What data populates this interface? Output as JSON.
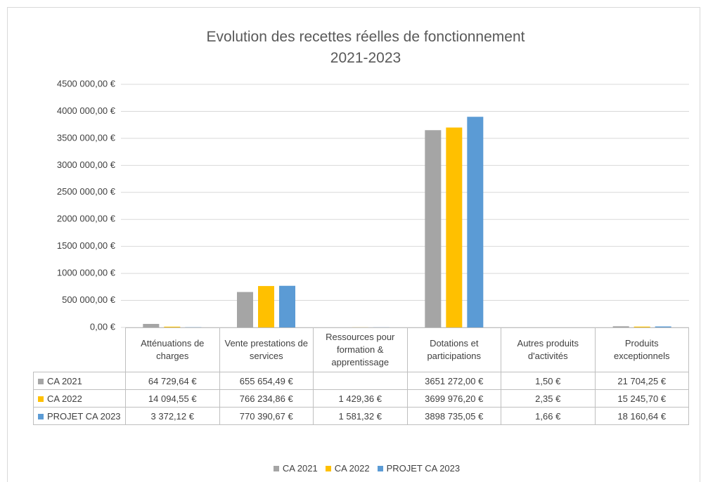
{
  "chart_data": {
    "type": "bar",
    "title": "Evolution des recettes réelles de fonctionnement\n2021-2023",
    "categories": [
      "Atténuations de charges",
      "Vente prestations de services",
      "Ressources pour formation & apprentissage",
      "Dotations et participations",
      "Autres produits d'activités",
      "Produits exceptionnels"
    ],
    "series": [
      {
        "name": "CA 2021",
        "color": "#a5a5a5",
        "values": [
          64729.64,
          655654.49,
          null,
          3651272.0,
          1.5,
          21704.25
        ],
        "value_labels": [
          "64 729,64 €",
          "655 654,49 €",
          null,
          "3651 272,00 €",
          "1,50 €",
          "21 704,25 €"
        ]
      },
      {
        "name": "CA 2022",
        "color": "#ffc000",
        "values": [
          14094.55,
          766234.86,
          1429.36,
          3699976.2,
          2.35,
          15245.7
        ],
        "value_labels": [
          "14 094,55 €",
          "766 234,86 €",
          "1 429,36 €",
          "3699 976,20 €",
          "2,35 €",
          "15 245,70 €"
        ]
      },
      {
        "name": "PROJET CA 2023",
        "color": "#5b9bd5",
        "values": [
          3372.12,
          770390.67,
          1581.32,
          3898735.05,
          1.66,
          18160.64
        ],
        "value_labels": [
          "3 372,12 €",
          "770 390,67 €",
          "1 581,32 €",
          "3898 735,05 €",
          "1,66 €",
          "18 160,64 €"
        ]
      }
    ],
    "ylim": [
      0,
      4500000
    ],
    "yticks": [
      {
        "value": 0,
        "label": "0,00 €"
      },
      {
        "value": 500000,
        "label": "500 000,00 €"
      },
      {
        "value": 1000000,
        "label": "1000 000,00 €"
      },
      {
        "value": 1500000,
        "label": "1500 000,00 €"
      },
      {
        "value": 2000000,
        "label": "2000 000,00 €"
      },
      {
        "value": 2500000,
        "label": "2500 000,00 €"
      },
      {
        "value": 3000000,
        "label": "3000 000,00 €"
      },
      {
        "value": 3500000,
        "label": "3500 000,00 €"
      },
      {
        "value": 4000000,
        "label": "4000 000,00 €"
      },
      {
        "value": 4500000,
        "label": "4500 000,00 €"
      }
    ],
    "grid": true,
    "legend": "bottom"
  }
}
